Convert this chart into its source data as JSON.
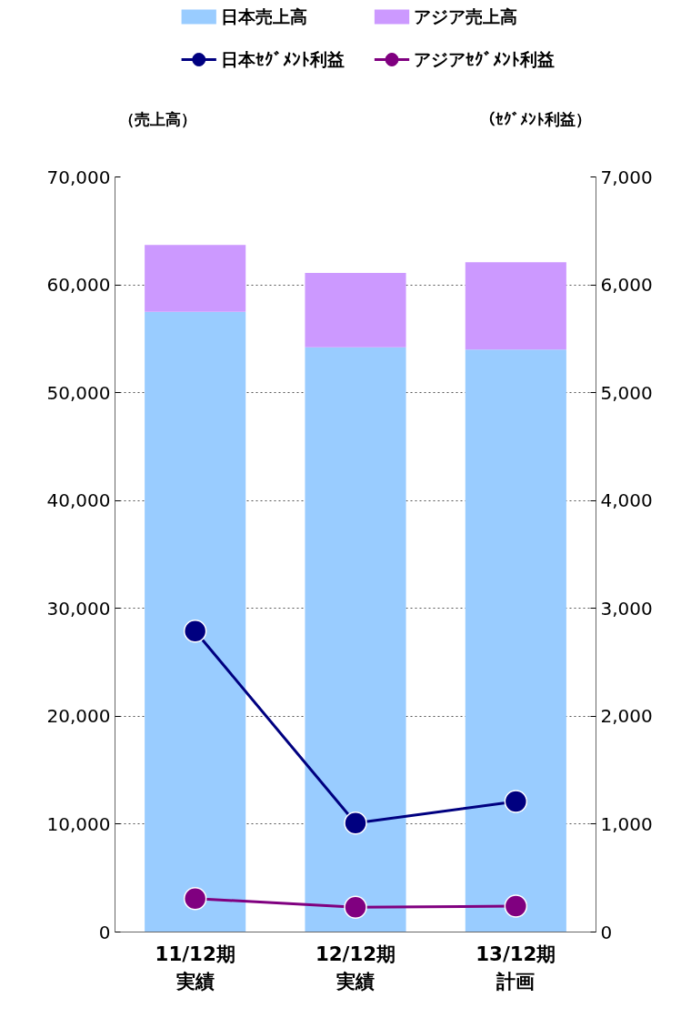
{
  "chart_data": {
    "type": "bar",
    "stacked": true,
    "categories": [
      "11/12期実績",
      "12/12期実績",
      "13/12期計画"
    ],
    "series": [
      {
        "name": "日本売上高",
        "color": "#99ccff",
        "values": [
          57500,
          54200,
          54000
        ]
      },
      {
        "name": "アジア売上高",
        "color": "#cc99ff",
        "values": [
          6200,
          6900,
          8100
        ]
      },
      {
        "name": "日本ｾｸﾞﾒﾝﾄ利益",
        "type": "line",
        "axis": "y2",
        "color": "#000080",
        "values": [
          2790,
          1010,
          1210
        ]
      },
      {
        "name": "アジアｾｸﾞﾒﾝﾄ利益",
        "type": "line",
        "axis": "y2",
        "color": "#800080",
        "values": [
          310,
          230,
          240
        ]
      }
    ],
    "ylabel": "（売上高）",
    "y2label": "（ｾｸﾞﾒﾝﾄ利益）",
    "ylim": [
      0,
      70000
    ],
    "yticks": [
      {
        "value": 0,
        "label": "0"
      },
      {
        "value": 10000,
        "label": "10,000"
      },
      {
        "value": 20000,
        "label": "20,000"
      },
      {
        "value": 30000,
        "label": "30,000"
      },
      {
        "value": 40000,
        "label": "40,000"
      },
      {
        "value": 50000,
        "label": "50,000"
      },
      {
        "value": 60000,
        "label": "60,000"
      },
      {
        "value": 70000,
        "label": "70,000"
      }
    ],
    "y2lim": [
      0,
      7000
    ],
    "y2ticks": [
      0,
      {
        "value": 1000,
        "label": "1,000"
      },
      {
        "value": 2000,
        "label": "2,000"
      },
      {
        "value": 3000,
        "label": "3,000"
      },
      {
        "value": 4000,
        "label": "4,000"
      },
      {
        "value": 5000,
        "label": "5,000"
      },
      {
        "value": 6000,
        "label": "6,000"
      },
      {
        "value": 7000,
        "label": "7,000"
      }
    ],
    "grid": "y",
    "legend": "top",
    "marker": "circle",
    "line_style": "solid"
  }
}
